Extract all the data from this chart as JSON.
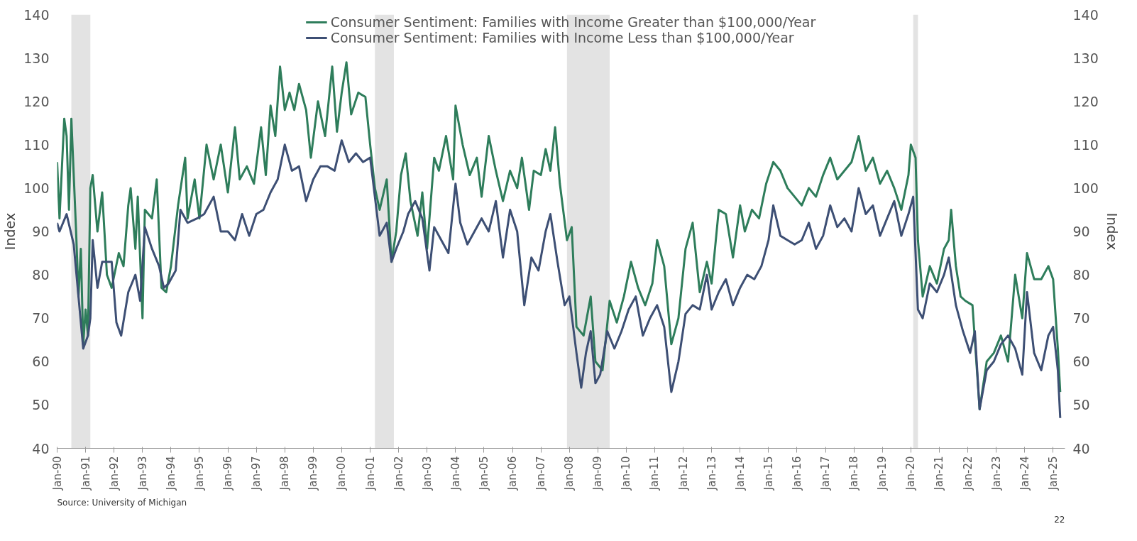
{
  "chart_data": {
    "type": "line",
    "ylabel": "Index",
    "y2label": "Index",
    "legend": "top",
    "grid": false,
    "xlim": [
      "1990-01",
      "2025-06"
    ],
    "xticks": [
      {
        "value": "1990-01",
        "label": "Jan-90"
      },
      {
        "value": "1991-01",
        "label": "Jan-91"
      },
      {
        "value": "1992-01",
        "label": "Jan-92"
      },
      {
        "value": "1993-01",
        "label": "Jan-93"
      },
      {
        "value": "1994-01",
        "label": "Jan-94"
      },
      {
        "value": "1995-01",
        "label": "Jan-95"
      },
      {
        "value": "1996-01",
        "label": "Jan-96"
      },
      {
        "value": "1997-01",
        "label": "Jan-97"
      },
      {
        "value": "1998-01",
        "label": "Jan-98"
      },
      {
        "value": "1999-01",
        "label": "Jan-99"
      },
      {
        "value": "2000-01",
        "label": "Jan-00"
      },
      {
        "value": "2001-01",
        "label": "Jan-01"
      },
      {
        "value": "2002-01",
        "label": "Jan-02"
      },
      {
        "value": "2003-01",
        "label": "Jan-03"
      },
      {
        "value": "2004-01",
        "label": "Jan-04"
      },
      {
        "value": "2005-01",
        "label": "Jan-05"
      },
      {
        "value": "2006-01",
        "label": "Jan-06"
      },
      {
        "value": "2007-01",
        "label": "Jan-07"
      },
      {
        "value": "2008-01",
        "label": "Jan-08"
      },
      {
        "value": "2009-01",
        "label": "Jan-09"
      },
      {
        "value": "2010-01",
        "label": "Jan-10"
      },
      {
        "value": "2011-01",
        "label": "Jan-11"
      },
      {
        "value": "2012-01",
        "label": "Jan-12"
      },
      {
        "value": "2013-01",
        "label": "Jan-13"
      },
      {
        "value": "2014-01",
        "label": "Jan-14"
      },
      {
        "value": "2015-01",
        "label": "Jan-15"
      },
      {
        "value": "2016-01",
        "label": "Jan-16"
      },
      {
        "value": "2017-01",
        "label": "Jan-17"
      },
      {
        "value": "2018-01",
        "label": "Jan-18"
      },
      {
        "value": "2019-01",
        "label": "Jan-19"
      },
      {
        "value": "2020-01",
        "label": "Jan-20"
      },
      {
        "value": "2021-01",
        "label": "Jan-21"
      },
      {
        "value": "2022-01",
        "label": "Jan-22"
      },
      {
        "value": "2023-01",
        "label": "Jan-23"
      },
      {
        "value": "2024-01",
        "label": "Jan-24"
      },
      {
        "value": "2025-01",
        "label": "Jan-25"
      }
    ],
    "ylim": [
      40,
      140
    ],
    "yticks": [
      40,
      50,
      60,
      70,
      80,
      90,
      100,
      110,
      120,
      130,
      140
    ],
    "y2lim": [
      40,
      140
    ],
    "y2ticks": [
      40,
      50,
      60,
      70,
      80,
      90,
      100,
      110,
      120,
      130,
      140
    ],
    "bands": [
      {
        "axis": "x",
        "from": "1990-07",
        "to": "1991-03",
        "color": "#e3e3e3"
      },
      {
        "axis": "x",
        "from": "2001-03",
        "to": "2001-11",
        "color": "#e3e3e3"
      },
      {
        "axis": "x",
        "from": "2007-12",
        "to": "2009-06",
        "color": "#e3e3e3"
      },
      {
        "axis": "x",
        "from": "2020-02",
        "to": "2020-04",
        "color": "#e3e3e3"
      }
    ],
    "series": [
      {
        "name": "Consumer Sentiment: Families with Income Greater than $100,000/Year",
        "color": "#2e7d5b",
        "x": [
          "1990-01",
          "1990-02",
          "1990-04",
          "1990-05",
          "1990-06",
          "1990-07",
          "1990-09",
          "1990-10",
          "1990-11",
          "1990-12",
          "1991-01",
          "1991-02",
          "1991-03",
          "1991-04",
          "1991-06",
          "1991-08",
          "1991-10",
          "1991-12",
          "1992-03",
          "1992-05",
          "1992-07",
          "1992-08",
          "1992-10",
          "1992-11",
          "1993-01",
          "1993-02",
          "1993-05",
          "1993-07",
          "1993-09",
          "1993-11",
          "1994-01",
          "1994-04",
          "1994-07",
          "1994-08",
          "1994-11",
          "1995-01",
          "1995-04",
          "1995-07",
          "1995-10",
          "1996-01",
          "1996-04",
          "1996-06",
          "1996-09",
          "1996-12",
          "1997-03",
          "1997-05",
          "1997-07",
          "1997-09",
          "1997-11",
          "1998-01",
          "1998-03",
          "1998-05",
          "1998-07",
          "1998-10",
          "1998-12",
          "1999-03",
          "1999-06",
          "1999-09",
          "1999-11",
          "2000-01",
          "2000-03",
          "2000-05",
          "2000-08",
          "2000-11",
          "2001-01",
          "2001-03",
          "2001-05",
          "2001-08",
          "2001-10",
          "2001-12",
          "2002-02",
          "2002-04",
          "2002-06",
          "2002-09",
          "2002-11",
          "2003-01",
          "2003-04",
          "2003-06",
          "2003-09",
          "2003-12",
          "2004-01",
          "2004-04",
          "2004-07",
          "2004-10",
          "2004-12",
          "2005-03",
          "2005-06",
          "2005-09",
          "2005-12",
          "2006-03",
          "2006-05",
          "2006-08",
          "2006-10",
          "2007-01",
          "2007-03",
          "2007-05",
          "2007-07",
          "2007-09",
          "2007-12",
          "2008-02",
          "2008-04",
          "2008-07",
          "2008-10",
          "2008-12",
          "2009-03",
          "2009-06",
          "2009-09",
          "2009-12",
          "2010-03",
          "2010-06",
          "2010-09",
          "2010-12",
          "2011-02",
          "2011-05",
          "2011-08",
          "2011-11",
          "2012-02",
          "2012-05",
          "2012-08",
          "2012-11",
          "2013-01",
          "2013-04",
          "2013-07",
          "2013-10",
          "2014-01",
          "2014-03",
          "2014-06",
          "2014-09",
          "2014-12",
          "2015-03",
          "2015-06",
          "2015-09",
          "2015-12",
          "2016-03",
          "2016-06",
          "2016-09",
          "2016-12",
          "2017-03",
          "2017-06",
          "2017-09",
          "2017-12",
          "2018-03",
          "2018-06",
          "2018-09",
          "2018-12",
          "2019-03",
          "2019-06",
          "2019-09",
          "2019-12",
          "2020-01",
          "2020-03",
          "2020-04",
          "2020-06",
          "2020-09",
          "2020-12",
          "2021-03",
          "2021-05",
          "2021-06",
          "2021-08",
          "2021-10",
          "2021-12",
          "2022-03",
          "2022-06",
          "2022-09",
          "2022-12",
          "2023-03",
          "2023-06",
          "2023-09",
          "2023-12",
          "2024-02",
          "2024-05",
          "2024-08",
          "2024-11",
          "2025-01",
          "2025-03",
          "2025-04"
        ],
        "values": [
          106,
          93,
          116,
          112,
          95,
          116,
          90,
          75,
          86,
          64,
          72,
          66,
          100,
          103,
          90,
          99,
          80,
          77,
          85,
          82,
          96,
          100,
          86,
          98,
          70,
          95,
          93,
          102,
          77,
          76,
          82,
          96,
          107,
          93,
          102,
          93,
          110,
          102,
          110,
          99,
          114,
          102,
          105,
          101,
          114,
          103,
          119,
          112,
          128,
          118,
          122,
          118,
          124,
          118,
          107,
          120,
          112,
          128,
          113,
          122,
          129,
          117,
          122,
          121,
          110,
          100,
          95,
          102,
          83,
          90,
          103,
          108,
          97,
          89,
          99,
          86,
          107,
          104,
          112,
          102,
          119,
          110,
          103,
          107,
          98,
          112,
          104,
          97,
          104,
          100,
          107,
          95,
          104,
          103,
          109,
          104,
          114,
          101,
          88,
          91,
          68,
          66,
          75,
          60,
          58,
          74,
          69,
          75,
          83,
          77,
          73,
          78,
          88,
          82,
          64,
          70,
          86,
          92,
          76,
          83,
          78,
          95,
          94,
          84,
          96,
          90,
          95,
          93,
          101,
          106,
          104,
          100,
          98,
          96,
          100,
          98,
          103,
          107,
          102,
          104,
          106,
          112,
          104,
          107,
          101,
          104,
          100,
          95,
          103,
          110,
          107,
          88,
          75,
          82,
          78,
          86,
          88,
          95,
          82,
          75,
          74,
          73,
          49,
          60,
          62,
          66,
          60,
          80,
          70,
          85,
          79,
          79,
          82,
          79,
          63,
          53
        ]
      },
      {
        "name": "Consumer Sentiment: Families with Income Less than $100,000/Year",
        "color": "#3d4f74",
        "x": [
          "1990-01",
          "1990-02",
          "1990-05",
          "1990-08",
          "1990-10",
          "1990-12",
          "1991-02",
          "1991-03",
          "1991-04",
          "1991-06",
          "1991-08",
          "1991-12",
          "1992-02",
          "1992-04",
          "1992-07",
          "1992-10",
          "1992-12",
          "1993-02",
          "1993-05",
          "1993-08",
          "1993-10",
          "1993-12",
          "1994-03",
          "1994-05",
          "1994-08",
          "1994-12",
          "1995-03",
          "1995-07",
          "1995-10",
          "1996-01",
          "1996-04",
          "1996-07",
          "1996-10",
          "1997-01",
          "1997-04",
          "1997-07",
          "1997-10",
          "1998-01",
          "1998-04",
          "1998-07",
          "1998-10",
          "1999-01",
          "1999-04",
          "1999-07",
          "1999-10",
          "2000-01",
          "2000-04",
          "2000-07",
          "2000-10",
          "2001-01",
          "2001-03",
          "2001-05",
          "2001-08",
          "2001-10",
          "2001-12",
          "2002-03",
          "2002-05",
          "2002-08",
          "2002-11",
          "2003-02",
          "2003-04",
          "2003-07",
          "2003-10",
          "2004-01",
          "2004-03",
          "2004-06",
          "2004-09",
          "2004-12",
          "2005-03",
          "2005-06",
          "2005-09",
          "2005-12",
          "2006-03",
          "2006-06",
          "2006-09",
          "2006-12",
          "2007-03",
          "2007-05",
          "2007-08",
          "2007-11",
          "2008-01",
          "2008-04",
          "2008-06",
          "2008-08",
          "2008-10",
          "2008-12",
          "2009-02",
          "2009-05",
          "2009-08",
          "2009-11",
          "2010-02",
          "2010-05",
          "2010-08",
          "2010-11",
          "2011-02",
          "2011-05",
          "2011-08",
          "2011-11",
          "2012-02",
          "2012-05",
          "2012-08",
          "2012-11",
          "2013-01",
          "2013-04",
          "2013-07",
          "2013-10",
          "2014-01",
          "2014-04",
          "2014-07",
          "2014-10",
          "2015-01",
          "2015-03",
          "2015-06",
          "2015-09",
          "2015-12",
          "2016-03",
          "2016-06",
          "2016-09",
          "2016-12",
          "2017-03",
          "2017-06",
          "2017-09",
          "2017-12",
          "2018-03",
          "2018-06",
          "2018-09",
          "2018-12",
          "2019-03",
          "2019-06",
          "2019-09",
          "2019-12",
          "2020-02",
          "2020-04",
          "2020-06",
          "2020-09",
          "2020-12",
          "2021-03",
          "2021-05",
          "2021-08",
          "2021-11",
          "2022-02",
          "2022-04",
          "2022-06",
          "2022-09",
          "2022-12",
          "2023-03",
          "2023-06",
          "2023-09",
          "2023-12",
          "2024-02",
          "2024-05",
          "2024-08",
          "2024-11",
          "2025-01",
          "2025-03",
          "2025-04"
        ],
        "values": [
          92,
          90,
          94,
          87,
          75,
          63,
          66,
          70,
          88,
          77,
          83,
          83,
          69,
          66,
          76,
          80,
          74,
          91,
          86,
          82,
          77,
          78,
          81,
          95,
          92,
          93,
          94,
          98,
          90,
          90,
          88,
          94,
          89,
          94,
          95,
          99,
          102,
          110,
          104,
          105,
          97,
          102,
          105,
          105,
          104,
          111,
          106,
          108,
          106,
          107,
          98,
          89,
          92,
          83,
          86,
          90,
          94,
          97,
          93,
          81,
          91,
          88,
          85,
          101,
          92,
          87,
          90,
          93,
          90,
          97,
          84,
          95,
          90,
          73,
          84,
          81,
          90,
          94,
          83,
          73,
          75,
          62,
          54,
          62,
          67,
          55,
          57,
          67,
          63,
          67,
          72,
          75,
          66,
          70,
          73,
          68,
          53,
          60,
          71,
          73,
          72,
          80,
          72,
          76,
          79,
          73,
          77,
          80,
          79,
          82,
          88,
          96,
          89,
          88,
          87,
          88,
          92,
          86,
          89,
          96,
          91,
          93,
          90,
          100,
          94,
          96,
          89,
          93,
          97,
          89,
          94,
          98,
          72,
          70,
          78,
          76,
          80,
          84,
          73,
          67,
          62,
          67,
          49,
          58,
          60,
          64,
          66,
          63,
          57,
          76,
          62,
          58,
          66,
          68,
          58,
          47
        ]
      }
    ],
    "annotations": [
      "Source: University of Michigan",
      "22"
    ]
  }
}
